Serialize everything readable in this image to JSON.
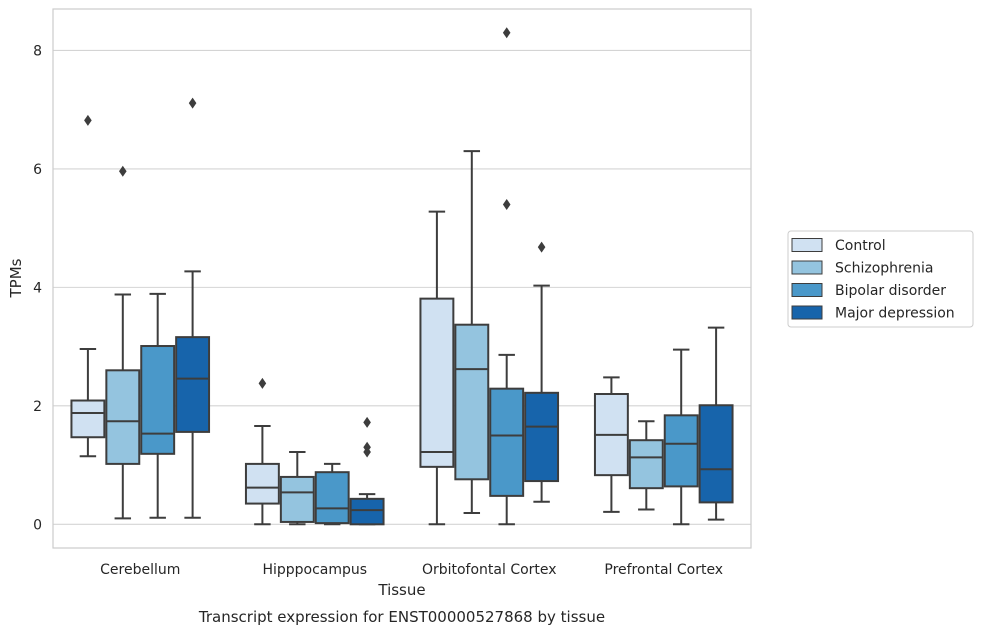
{
  "caption": "Transcript expression for ENST00000527868 by tissue",
  "chart_data": {
    "type": "box",
    "title": "",
    "xlabel": "Tissue",
    "ylabel": "TPMs",
    "ylim": [
      -0.4,
      8.7
    ],
    "yticks": [
      0,
      2,
      4,
      6,
      8
    ],
    "grid": "horizontal",
    "legend_position": "right",
    "categories": [
      "Cerebellum",
      "Hipppocampus",
      "Orbitofontal Cortex",
      "Prefrontal Cortex"
    ],
    "series": [
      {
        "name": "Control",
        "color": "#d0e1f2",
        "boxes": [
          {
            "whisker_low": 1.15,
            "q1": 1.47,
            "median": 1.88,
            "q3": 2.09,
            "whisker_high": 2.96,
            "outliers": [
              6.82
            ]
          },
          {
            "whisker_low": 0.0,
            "q1": 0.35,
            "median": 0.62,
            "q3": 1.02,
            "whisker_high": 1.66,
            "outliers": [
              2.38
            ]
          },
          {
            "whisker_low": 0.0,
            "q1": 0.97,
            "median": 1.22,
            "q3": 3.81,
            "whisker_high": 5.28,
            "outliers": []
          },
          {
            "whisker_low": 0.21,
            "q1": 0.83,
            "median": 1.51,
            "q3": 2.2,
            "whisker_high": 2.48,
            "outliers": []
          }
        ]
      },
      {
        "name": "Schizophrenia",
        "color": "#94c4df",
        "boxes": [
          {
            "whisker_low": 0.1,
            "q1": 1.02,
            "median": 1.74,
            "q3": 2.6,
            "whisker_high": 3.88,
            "outliers": [
              5.96
            ]
          },
          {
            "whisker_low": 0.0,
            "q1": 0.04,
            "median": 0.54,
            "q3": 0.8,
            "whisker_high": 1.22,
            "outliers": []
          },
          {
            "whisker_low": 0.19,
            "q1": 0.76,
            "median": 2.62,
            "q3": 3.37,
            "whisker_high": 6.3,
            "outliers": []
          },
          {
            "whisker_low": 0.25,
            "q1": 0.61,
            "median": 1.13,
            "q3": 1.42,
            "whisker_high": 1.74,
            "outliers": []
          }
        ]
      },
      {
        "name": "Bipolar disorder",
        "color": "#4a98c9",
        "boxes": [
          {
            "whisker_low": 0.11,
            "q1": 1.19,
            "median": 1.53,
            "q3": 3.01,
            "whisker_high": 3.89,
            "outliers": []
          },
          {
            "whisker_low": 0.0,
            "q1": 0.02,
            "median": 0.27,
            "q3": 0.88,
            "whisker_high": 1.02,
            "outliers": []
          },
          {
            "whisker_low": 0.0,
            "q1": 0.48,
            "median": 1.5,
            "q3": 2.29,
            "whisker_high": 2.86,
            "outliers": [
              5.4,
              8.3
            ]
          },
          {
            "whisker_low": 0.0,
            "q1": 0.64,
            "median": 1.36,
            "q3": 1.84,
            "whisker_high": 2.95,
            "outliers": []
          }
        ]
      },
      {
        "name": "Major depression",
        "color": "#1764ab",
        "boxes": [
          {
            "whisker_low": 0.11,
            "q1": 1.56,
            "median": 2.46,
            "q3": 3.16,
            "whisker_high": 4.27,
            "outliers": [
              7.11
            ]
          },
          {
            "whisker_low": 0.0,
            "q1": 0.0,
            "median": 0.24,
            "q3": 0.43,
            "whisker_high": 0.51,
            "outliers": [
              1.72,
              1.3,
              1.22
            ]
          },
          {
            "whisker_low": 0.38,
            "q1": 0.73,
            "median": 1.65,
            "q3": 2.22,
            "whisker_high": 4.03,
            "outliers": [
              4.68
            ]
          },
          {
            "whisker_low": 0.08,
            "q1": 0.37,
            "median": 0.93,
            "q3": 2.01,
            "whisker_high": 3.32,
            "outliers": []
          }
        ]
      }
    ]
  }
}
